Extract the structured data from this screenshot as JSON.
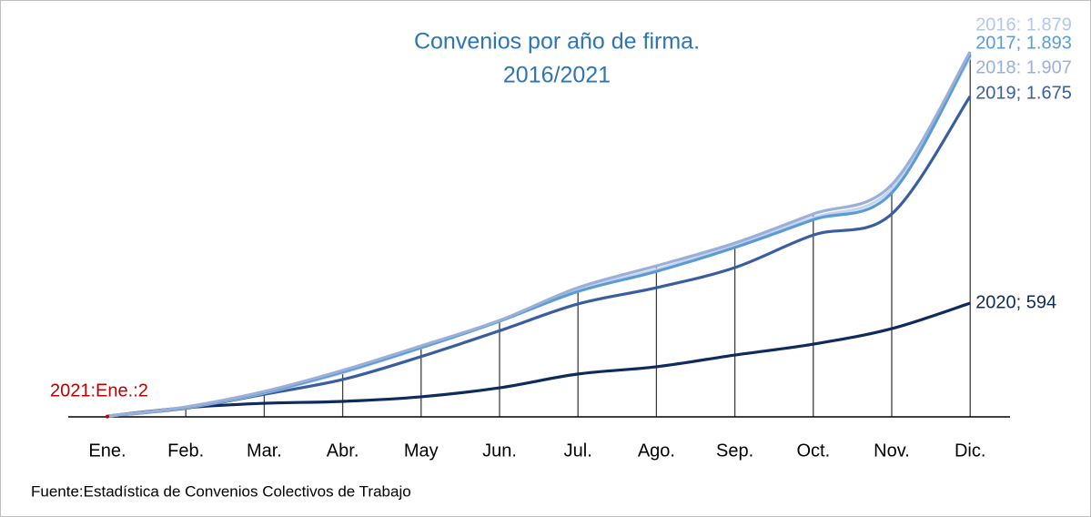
{
  "chart_data": {
    "type": "line",
    "title": "Convenios por año de firma.",
    "subtitle": "2016/2021",
    "source": "Fuente:Estadística de Convenios Colectivos de Trabajo",
    "categories": [
      "Ene.",
      "Feb.",
      "Mar.",
      "Abr.",
      "May",
      "Jun.",
      "Jul.",
      "Ago.",
      "Sep.",
      "Oct.",
      "Nov.",
      "Dic."
    ],
    "ylim": [
      0,
      2000
    ],
    "drop_lines": true,
    "series": [
      {
        "name": "2020",
        "color": "#0e2a5e",
        "values": [
          4,
          48,
          71,
          81,
          105,
          152,
          224,
          262,
          323,
          380,
          461,
          594
        ],
        "value_labels": [
          null,
          null,
          null,
          null,
          null,
          null,
          null,
          null,
          null,
          null,
          null,
          "2020; 594"
        ]
      },
      {
        "name": "2019",
        "color": "#3a5da0",
        "values": [
          4,
          45,
          118,
          195,
          315,
          450,
          590,
          675,
          780,
          950,
          1060,
          1675
        ],
        "value_labels": [
          null,
          null,
          null,
          null,
          null,
          null,
          null,
          null,
          null,
          null,
          null,
          "2019; 1.675"
        ]
      },
      {
        "name": "2016",
        "color": "#c5d6ee",
        "values": [
          4,
          48,
          125,
          230,
          360,
          500,
          665,
          770,
          900,
          1040,
          1190,
          1879
        ],
        "value_labels": [
          null,
          null,
          null,
          null,
          null,
          null,
          null,
          null,
          null,
          null,
          null,
          "2016: 1.879"
        ]
      },
      {
        "name": "2017",
        "color": "#5b9bd5",
        "values": [
          4,
          50,
          128,
          235,
          362,
          500,
          655,
          760,
          885,
          1030,
          1170,
          1893
        ],
        "value_labels": [
          null,
          null,
          null,
          null,
          null,
          null,
          null,
          null,
          null,
          null,
          null,
          "2017; 1.893"
        ]
      },
      {
        "name": "2018",
        "color": "#9bb0d9",
        "values": [
          4,
          52,
          133,
          243,
          371,
          504,
          675,
          789,
          908,
          1060,
          1213,
          1907
        ],
        "value_labels": [
          null,
          null,
          null,
          null,
          null,
          null,
          null,
          null,
          null,
          null,
          null,
          "2018: 1.907"
        ]
      },
      {
        "name": "2021",
        "color": "#c00000",
        "values": [
          2,
          null,
          null,
          null,
          null,
          null,
          null,
          null,
          null,
          null,
          null,
          null
        ],
        "value_labels": [
          "2021:Ene.:2",
          null,
          null,
          null,
          null,
          null,
          null,
          null,
          null,
          null,
          null,
          null
        ]
      }
    ]
  }
}
